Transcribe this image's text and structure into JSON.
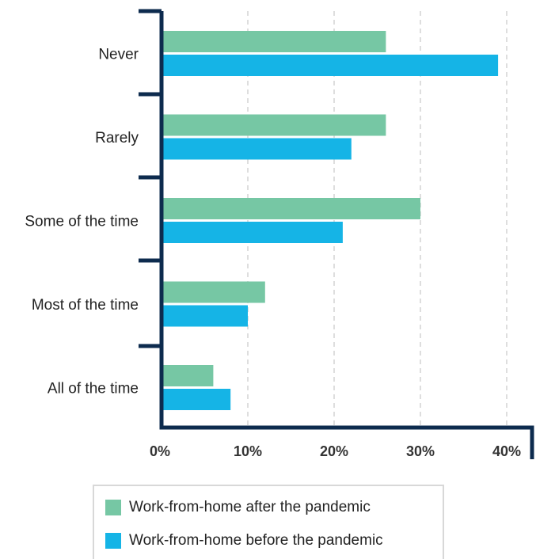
{
  "chart_data": {
    "type": "bar",
    "orientation": "horizontal",
    "categories": [
      "Never",
      "Rarely",
      "Some of the time",
      "Most of the time",
      "All of the time"
    ],
    "series": [
      {
        "name": "Work-from-home after the pandemic",
        "color": "#76c7a4",
        "values": [
          26,
          26,
          30,
          12,
          6
        ]
      },
      {
        "name": "Work-from-home before the pandemic",
        "color": "#15b4e6",
        "values": [
          39,
          22,
          21,
          10,
          8
        ]
      }
    ],
    "xlim": [
      0,
      40
    ],
    "xticks": [
      0,
      10,
      20,
      30,
      40
    ],
    "xtick_labels": [
      "0%",
      "10%",
      "20%",
      "30%",
      "40%"
    ],
    "grid": "vertical dashed",
    "axis_color": "#0d2b4e",
    "legend_position": "bottom"
  }
}
